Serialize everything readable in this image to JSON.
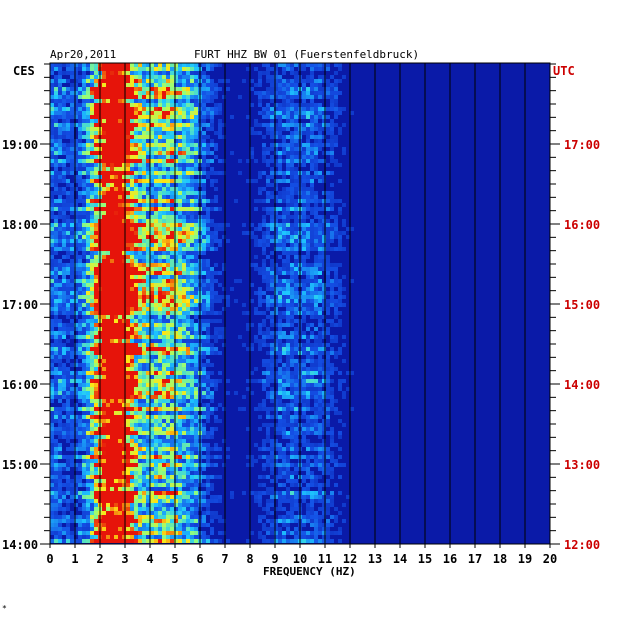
{
  "header": {
    "date": "Apr20,2011",
    "station": "FURT HHZ BW 01 (Fuerstenfeldbruck)"
  },
  "labels": {
    "left_zone": "CES",
    "right_zone": "UTC",
    "corner_mark": "*"
  },
  "colors": {
    "background": "#ffffff",
    "plot_base": "#0a1aa8",
    "gridlines": "#000000",
    "utc_text": "#cc0000",
    "text": "#000000"
  },
  "chart_data": {
    "type": "heatmap",
    "title": "FURT HHZ BW 01 (Fuerstenfeldbruck)",
    "xlabel": "FREQUENCY (HZ)",
    "ylabel": "",
    "xlim": [
      0,
      20
    ],
    "x_ticks": [
      "0",
      "1",
      "2",
      "3",
      "4",
      "5",
      "6",
      "7",
      "8",
      "9",
      "10",
      "11",
      "12",
      "13",
      "14",
      "15",
      "16",
      "17",
      "18",
      "19",
      "20"
    ],
    "y_ticks_left": [
      "19:00",
      "18:00",
      "17:00",
      "16:00",
      "15:00",
      "14:00"
    ],
    "y_ticks_right": [
      "17:00",
      "16:00",
      "15:00",
      "14:00",
      "13:00",
      "12:00"
    ],
    "y_time_range_ces": [
      "14:00",
      "19:50"
    ],
    "grid": true,
    "colormap": "blue-cyan-yellow-red",
    "energy_bands_hz": [
      {
        "center": 2.8,
        "intensity": 1.0
      },
      {
        "center": 2.2,
        "intensity": 0.75
      },
      {
        "center": 4.3,
        "intensity": 0.55
      },
      {
        "center": 5.6,
        "intensity": 0.4
      },
      {
        "center": 9.2,
        "intensity": 0.3
      },
      {
        "center": 10.8,
        "intensity": 0.3
      }
    ]
  }
}
